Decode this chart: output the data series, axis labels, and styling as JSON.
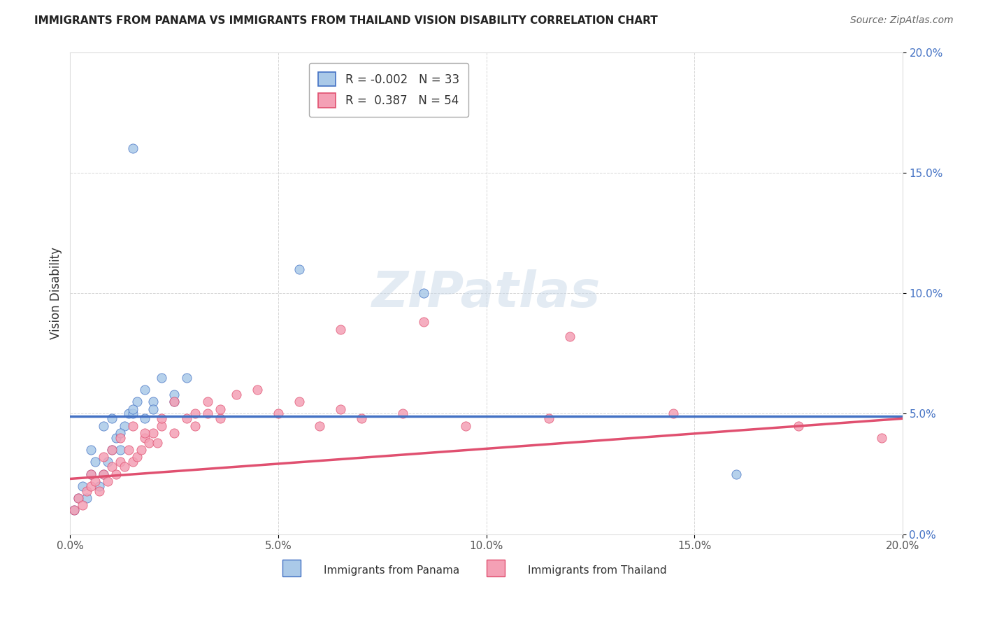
{
  "title": "IMMIGRANTS FROM PANAMA VS IMMIGRANTS FROM THAILAND VISION DISABILITY CORRELATION CHART",
  "source": "Source: ZipAtlas.com",
  "xlabel": "",
  "ylabel": "Vision Disability",
  "xlim": [
    0.0,
    0.2
  ],
  "ylim": [
    0.0,
    0.2
  ],
  "xticks": [
    0.0,
    0.05,
    0.1,
    0.15,
    0.2
  ],
  "yticks": [
    0.0,
    0.05,
    0.1,
    0.15,
    0.2
  ],
  "xticklabels": [
    "0.0%",
    "5.0%",
    "10.0%",
    "15.0%",
    "20.0%"
  ],
  "yticklabels": [
    "0.0%",
    "5.0%",
    "10.0%",
    "15.0%",
    "20.0%"
  ],
  "series1_name": "Immigrants from Panama",
  "series1_color": "#aac9e8",
  "series1_R": "-0.002",
  "series1_N": "33",
  "series2_name": "Immigrants from Thailand",
  "series2_color": "#f4a0b5",
  "series2_R": "0.387",
  "series2_N": "54",
  "trend1_color": "#4472c4",
  "trend2_color": "#e05070",
  "watermark": "ZIPatlas",
  "panama_x": [
    0.001,
    0.002,
    0.003,
    0.004,
    0.005,
    0.006,
    0.007,
    0.008,
    0.009,
    0.01,
    0.011,
    0.012,
    0.013,
    0.014,
    0.015,
    0.016,
    0.018,
    0.02,
    0.022,
    0.025,
    0.028,
    0.005,
    0.008,
    0.01,
    0.012,
    0.015,
    0.018,
    0.02,
    0.025,
    0.055,
    0.085,
    0.16,
    0.015
  ],
  "panama_y": [
    0.01,
    0.015,
    0.02,
    0.015,
    0.025,
    0.03,
    0.02,
    0.025,
    0.03,
    0.035,
    0.04,
    0.035,
    0.045,
    0.05,
    0.05,
    0.055,
    0.06,
    0.055,
    0.065,
    0.055,
    0.065,
    0.035,
    0.045,
    0.048,
    0.042,
    0.052,
    0.048,
    0.052,
    0.058,
    0.11,
    0.1,
    0.025,
    0.16
  ],
  "thailand_x": [
    0.001,
    0.002,
    0.003,
    0.004,
    0.005,
    0.006,
    0.007,
    0.008,
    0.009,
    0.01,
    0.011,
    0.012,
    0.013,
    0.014,
    0.015,
    0.016,
    0.017,
    0.018,
    0.019,
    0.02,
    0.021,
    0.022,
    0.025,
    0.028,
    0.03,
    0.033,
    0.036,
    0.005,
    0.008,
    0.01,
    0.012,
    0.015,
    0.018,
    0.022,
    0.025,
    0.03,
    0.033,
    0.036,
    0.04,
    0.045,
    0.05,
    0.055,
    0.06,
    0.065,
    0.07,
    0.08,
    0.095,
    0.115,
    0.145,
    0.175,
    0.195,
    0.065,
    0.085,
    0.12
  ],
  "thailand_y": [
    0.01,
    0.015,
    0.012,
    0.018,
    0.02,
    0.022,
    0.018,
    0.025,
    0.022,
    0.028,
    0.025,
    0.03,
    0.028,
    0.035,
    0.03,
    0.032,
    0.035,
    0.04,
    0.038,
    0.042,
    0.038,
    0.045,
    0.042,
    0.048,
    0.045,
    0.05,
    0.048,
    0.025,
    0.032,
    0.035,
    0.04,
    0.045,
    0.042,
    0.048,
    0.055,
    0.05,
    0.055,
    0.052,
    0.058,
    0.06,
    0.05,
    0.055,
    0.045,
    0.052,
    0.048,
    0.05,
    0.045,
    0.048,
    0.05,
    0.045,
    0.04,
    0.085,
    0.088,
    0.082
  ]
}
